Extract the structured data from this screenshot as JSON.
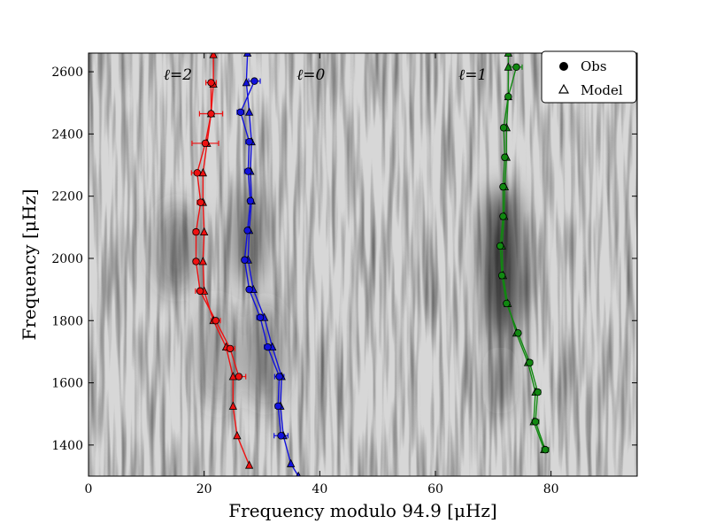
{
  "chart_data": {
    "type": "scatter",
    "xlabel": "Frequency modulo 94.9 [μHz]",
    "ylabel": "Frequency [μHz]",
    "xlim": [
      0,
      94.9
    ],
    "ylim": [
      1300,
      2660
    ],
    "xticks": [
      0,
      20,
      40,
      60,
      80
    ],
    "yticks": [
      1400,
      1600,
      1800,
      2000,
      2200,
      2400,
      2600
    ],
    "background": "grayscale echelle power spectrum",
    "legend": {
      "position": "top-right",
      "entries": [
        {
          "label": "Obs",
          "marker": "circle"
        },
        {
          "label": "Model",
          "marker": "triangle"
        }
      ]
    },
    "mode_labels": [
      {
        "text": "ℓ=2",
        "x": 13,
        "y": 2575
      },
      {
        "text": "ℓ=0",
        "x": 36,
        "y": 2575
      },
      {
        "text": "ℓ=1",
        "x": 64,
        "y": 2575
      }
    ],
    "series": [
      {
        "name": "l=2",
        "color": "#ee1111",
        "obs": [
          {
            "x": 26.0,
            "y": 1620,
            "err": 1.2
          },
          {
            "x": 24.5,
            "y": 1710,
            "err": 0.8
          },
          {
            "x": 22.0,
            "y": 1800,
            "err": 0.8
          },
          {
            "x": 19.3,
            "y": 1895,
            "err": 0.8
          },
          {
            "x": 18.6,
            "y": 1990,
            "err": 0.5
          },
          {
            "x": 18.6,
            "y": 2085,
            "err": 0.5
          },
          {
            "x": 19.4,
            "y": 2180,
            "err": 0.6
          },
          {
            "x": 18.8,
            "y": 2275,
            "err": 1.0
          },
          {
            "x": 20.2,
            "y": 2370,
            "err": 2.3
          },
          {
            "x": 21.2,
            "y": 2465,
            "err": 2.0
          },
          {
            "x": 21.2,
            "y": 2565,
            "err": 0.9
          }
        ],
        "model": [
          {
            "x": 27.8,
            "y": 1335
          },
          {
            "x": 25.7,
            "y": 1430
          },
          {
            "x": 25.0,
            "y": 1525
          },
          {
            "x": 25.0,
            "y": 1620
          },
          {
            "x": 23.8,
            "y": 1715
          },
          {
            "x": 21.6,
            "y": 1800
          },
          {
            "x": 20.0,
            "y": 1895
          },
          {
            "x": 19.8,
            "y": 1990
          },
          {
            "x": 20.0,
            "y": 2085
          },
          {
            "x": 19.8,
            "y": 2180
          },
          {
            "x": 19.8,
            "y": 2275
          },
          {
            "x": 20.5,
            "y": 2370
          },
          {
            "x": 21.2,
            "y": 2465
          },
          {
            "x": 21.6,
            "y": 2560
          },
          {
            "x": 21.6,
            "y": 2655
          }
        ]
      },
      {
        "name": "l=0",
        "color": "#1111dd",
        "obs": [
          {
            "x": 33.3,
            "y": 1430,
            "err": 1.2
          },
          {
            "x": 32.8,
            "y": 1525,
            "err": 0.5
          },
          {
            "x": 33.0,
            "y": 1620,
            "err": 0.8
          },
          {
            "x": 31.0,
            "y": 1715,
            "err": 0.6
          },
          {
            "x": 29.7,
            "y": 1810,
            "err": 0.6
          },
          {
            "x": 27.8,
            "y": 1900,
            "err": 0.4
          },
          {
            "x": 27.0,
            "y": 1995,
            "err": 0.4
          },
          {
            "x": 27.5,
            "y": 2090,
            "err": 0.4
          },
          {
            "x": 28.0,
            "y": 2185,
            "err": 0.4
          },
          {
            "x": 27.6,
            "y": 2280,
            "err": 0.6
          },
          {
            "x": 27.8,
            "y": 2375,
            "err": 0.6
          },
          {
            "x": 26.3,
            "y": 2470,
            "err": 0.6
          },
          {
            "x": 28.7,
            "y": 2570,
            "err": 1.0
          }
        ],
        "model": [
          {
            "x": 36.3,
            "y": 1300
          },
          {
            "x": 35.0,
            "y": 1340
          },
          {
            "x": 33.7,
            "y": 1430
          },
          {
            "x": 33.2,
            "y": 1525
          },
          {
            "x": 33.4,
            "y": 1620
          },
          {
            "x": 31.8,
            "y": 1715
          },
          {
            "x": 30.4,
            "y": 1810
          },
          {
            "x": 28.5,
            "y": 1900
          },
          {
            "x": 27.6,
            "y": 1995
          },
          {
            "x": 27.8,
            "y": 2090
          },
          {
            "x": 28.2,
            "y": 2185
          },
          {
            "x": 28.0,
            "y": 2280
          },
          {
            "x": 28.2,
            "y": 2375
          },
          {
            "x": 27.8,
            "y": 2470
          },
          {
            "x": 27.3,
            "y": 2565
          },
          {
            "x": 27.5,
            "y": 2660
          }
        ]
      },
      {
        "name": "l=1",
        "color": "#118811",
        "obs": [
          {
            "x": 79.0,
            "y": 1385,
            "err": 0.6
          },
          {
            "x": 77.3,
            "y": 1475,
            "err": 0.6
          },
          {
            "x": 77.7,
            "y": 1570,
            "err": 0.5
          },
          {
            "x": 76.3,
            "y": 1665,
            "err": 0.5
          },
          {
            "x": 74.3,
            "y": 1760,
            "err": 0.4
          },
          {
            "x": 72.3,
            "y": 1855,
            "err": 0.4
          },
          {
            "x": 71.5,
            "y": 1945,
            "err": 0.4
          },
          {
            "x": 71.2,
            "y": 2040,
            "err": 0.4
          },
          {
            "x": 71.7,
            "y": 2135,
            "err": 0.4
          },
          {
            "x": 71.7,
            "y": 2230,
            "err": 0.4
          },
          {
            "x": 72.0,
            "y": 2325,
            "err": 0.4
          },
          {
            "x": 71.8,
            "y": 2420,
            "err": 0.4
          },
          {
            "x": 72.6,
            "y": 2520,
            "err": 0.4
          },
          {
            "x": 74.0,
            "y": 2615,
            "err": 1.0
          }
        ],
        "model": [
          {
            "x": 78.8,
            "y": 1385
          },
          {
            "x": 77.0,
            "y": 1475
          },
          {
            "x": 77.3,
            "y": 1570
          },
          {
            "x": 76.0,
            "y": 1665
          },
          {
            "x": 74.0,
            "y": 1760
          },
          {
            "x": 72.5,
            "y": 1855
          },
          {
            "x": 71.7,
            "y": 1945
          },
          {
            "x": 71.5,
            "y": 2040
          },
          {
            "x": 71.9,
            "y": 2135
          },
          {
            "x": 72.0,
            "y": 2230
          },
          {
            "x": 72.3,
            "y": 2325
          },
          {
            "x": 72.3,
            "y": 2420
          },
          {
            "x": 72.6,
            "y": 2520
          },
          {
            "x": 72.6,
            "y": 2615
          },
          {
            "x": 72.6,
            "y": 2660
          }
        ]
      }
    ]
  }
}
